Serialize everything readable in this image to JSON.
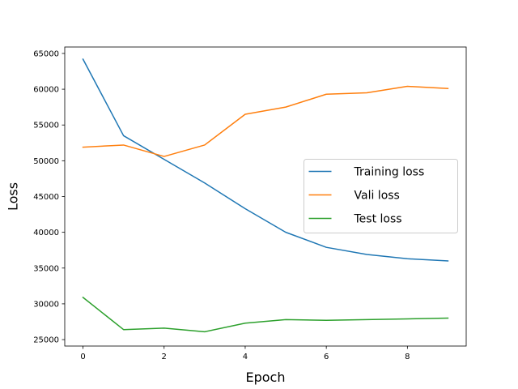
{
  "chart_data": {
    "type": "line",
    "xlabel": "Epoch",
    "ylabel": "Loss",
    "x": [
      0,
      1,
      2,
      3,
      4,
      5,
      6,
      7,
      8,
      9
    ],
    "xlim": [
      -0.45,
      9.45
    ],
    "ylim": [
      24100,
      65900
    ],
    "xticks": [
      0,
      2,
      4,
      6,
      8
    ],
    "yticks": [
      25000,
      30000,
      35000,
      40000,
      45000,
      50000,
      55000,
      60000,
      65000
    ],
    "grid": false,
    "legend_position": "center-right",
    "series": [
      {
        "name": "Training loss",
        "color": "#1f77b4",
        "values": [
          64200,
          53500,
          50200,
          46900,
          43300,
          40000,
          37900,
          36900,
          36300,
          36000
        ]
      },
      {
        "name": "Vali loss",
        "color": "#ff7f0e",
        "values": [
          51900,
          52200,
          50600,
          52200,
          56500,
          57500,
          59300,
          59500,
          60400,
          60100
        ]
      },
      {
        "name": "Test loss",
        "color": "#2ca02c",
        "values": [
          30900,
          26400,
          26600,
          26100,
          27300,
          27800,
          27700,
          27800,
          27900,
          28000
        ]
      }
    ]
  }
}
